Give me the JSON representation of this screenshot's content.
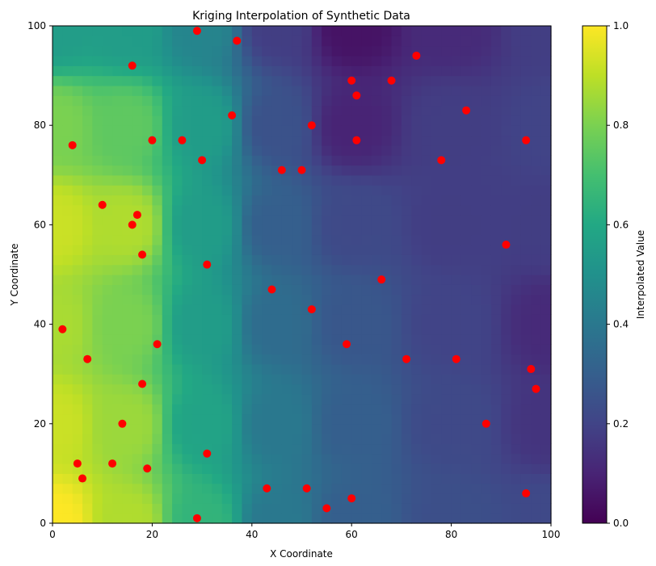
{
  "chart_data": {
    "type": "heatmap",
    "title": "Kriging Interpolation of Synthetic Data",
    "xlabel": "X Coordinate",
    "ylabel": "Y Coordinate",
    "xlim": [
      0,
      100
    ],
    "ylim": [
      0,
      100
    ],
    "xticks": [
      0,
      20,
      40,
      60,
      80,
      100
    ],
    "yticks": [
      0,
      20,
      40,
      60,
      80,
      100
    ],
    "colorbar": {
      "label": "Interpolated Value",
      "range": [
        0.0,
        1.0
      ],
      "ticks": [
        "0.0",
        "0.2",
        "0.4",
        "0.6",
        "0.8",
        "1.0"
      ],
      "colormap": "viridis"
    },
    "grid": false,
    "points_color": "#ff0000",
    "points": [
      [
        29,
        99
      ],
      [
        37,
        97
      ],
      [
        16,
        92
      ],
      [
        73,
        94
      ],
      [
        60,
        89
      ],
      [
        68,
        89
      ],
      [
        61,
        86
      ],
      [
        36,
        82
      ],
      [
        52,
        80
      ],
      [
        83,
        83
      ],
      [
        4,
        76
      ],
      [
        20,
        77
      ],
      [
        26,
        77
      ],
      [
        61,
        77
      ],
      [
        95,
        77
      ],
      [
        30,
        73
      ],
      [
        46,
        71
      ],
      [
        50,
        71
      ],
      [
        78,
        73
      ],
      [
        10,
        64
      ],
      [
        17,
        62
      ],
      [
        16,
        60
      ],
      [
        18,
        54
      ],
      [
        31,
        52
      ],
      [
        91,
        56
      ],
      [
        44,
        47
      ],
      [
        66,
        49
      ],
      [
        52,
        43
      ],
      [
        2,
        39
      ],
      [
        7,
        33
      ],
      [
        21,
        36
      ],
      [
        59,
        36
      ],
      [
        71,
        33
      ],
      [
        81,
        33
      ],
      [
        96,
        31
      ],
      [
        97,
        27
      ],
      [
        18,
        28
      ],
      [
        14,
        20
      ],
      [
        87,
        20
      ],
      [
        31,
        14
      ],
      [
        5,
        12
      ],
      [
        12,
        12
      ],
      [
        19,
        11
      ],
      [
        6,
        9
      ],
      [
        43,
        7
      ],
      [
        51,
        7
      ],
      [
        95,
        6
      ],
      [
        55,
        3
      ],
      [
        60,
        5
      ],
      [
        29,
        1
      ]
    ],
    "field_anchors": [
      [
        0,
        100,
        0.55
      ],
      [
        15,
        100,
        0.55
      ],
      [
        30,
        100,
        0.45
      ],
      [
        45,
        100,
        0.18
      ],
      [
        60,
        100,
        0.05
      ],
      [
        80,
        100,
        0.12
      ],
      [
        100,
        100,
        0.18
      ],
      [
        0,
        80,
        0.8
      ],
      [
        15,
        80,
        0.75
      ],
      [
        30,
        80,
        0.55
      ],
      [
        45,
        80,
        0.25
      ],
      [
        60,
        80,
        0.1
      ],
      [
        80,
        80,
        0.18
      ],
      [
        100,
        80,
        0.2
      ],
      [
        0,
        60,
        0.92
      ],
      [
        15,
        60,
        0.88
      ],
      [
        30,
        60,
        0.55
      ],
      [
        45,
        60,
        0.3
      ],
      [
        60,
        60,
        0.22
      ],
      [
        80,
        60,
        0.18
      ],
      [
        100,
        60,
        0.18
      ],
      [
        0,
        40,
        0.87
      ],
      [
        15,
        40,
        0.8
      ],
      [
        30,
        40,
        0.55
      ],
      [
        45,
        40,
        0.35
      ],
      [
        60,
        40,
        0.27
      ],
      [
        80,
        40,
        0.2
      ],
      [
        100,
        40,
        0.12
      ],
      [
        0,
        20,
        0.92
      ],
      [
        15,
        20,
        0.85
      ],
      [
        30,
        20,
        0.58
      ],
      [
        45,
        20,
        0.4
      ],
      [
        60,
        20,
        0.3
      ],
      [
        80,
        20,
        0.22
      ],
      [
        100,
        20,
        0.15
      ],
      [
        0,
        0,
        1.0
      ],
      [
        15,
        0,
        0.88
      ],
      [
        30,
        0,
        0.65
      ],
      [
        45,
        0,
        0.4
      ],
      [
        60,
        0,
        0.3
      ],
      [
        80,
        0,
        0.24
      ],
      [
        100,
        0,
        0.22
      ]
    ]
  }
}
